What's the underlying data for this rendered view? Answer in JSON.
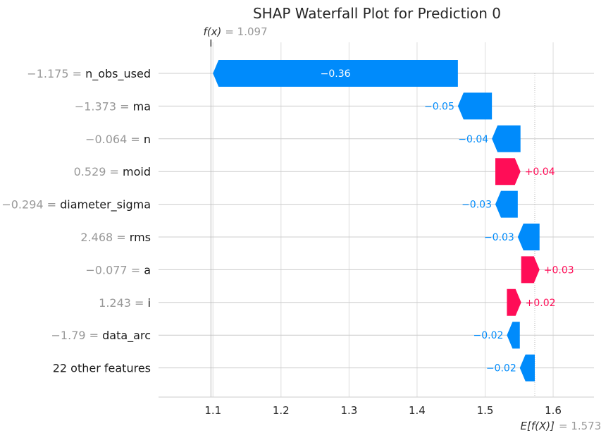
{
  "chart_data": {
    "type": "waterfall",
    "title": "SHAP Waterfall Plot for Prediction 0",
    "fx_label": "f(x)",
    "fx_value": "= 1.097",
    "efx_label": "E[f(X)]",
    "efx_value": "= 1.573",
    "base_value": 1.573,
    "final_value": 1.097,
    "xlim": [
      1.02,
      1.66
    ],
    "xticks": [
      1.1,
      1.2,
      1.3,
      1.4,
      1.5,
      1.6
    ],
    "xtick_labels": [
      "1.1",
      "1.2",
      "1.3",
      "1.4",
      "1.5",
      "1.6"
    ],
    "grid": true,
    "colors": {
      "positive": "#ff0d57",
      "negative": "#008bfb"
    },
    "features": [
      {
        "value": "−1.175 =",
        "name": "n_obs_used",
        "shap": -0.36,
        "label": "−0.36",
        "start": 1.46,
        "end": 1.1
      },
      {
        "value": "−1.373 =",
        "name": "ma",
        "shap": -0.05,
        "label": "−0.05",
        "start": 1.51,
        "end": 1.46
      },
      {
        "value": "−0.064 =",
        "name": "n",
        "shap": -0.04,
        "label": "−0.04",
        "start": 1.552,
        "end": 1.51
      },
      {
        "value": "0.529 =",
        "name": "moid",
        "shap": 0.04,
        "label": "+0.04",
        "start": 1.515,
        "end": 1.552
      },
      {
        "value": "−0.294 =",
        "name": "diameter_sigma",
        "shap": -0.03,
        "label": "−0.03",
        "start": 1.548,
        "end": 1.515
      },
      {
        "value": "2.468 =",
        "name": "rms",
        "shap": -0.03,
        "label": "−0.03",
        "start": 1.58,
        "end": 1.548
      },
      {
        "value": "−0.077 =",
        "name": "a",
        "shap": 0.03,
        "label": "+0.03",
        "start": 1.553,
        "end": 1.58
      },
      {
        "value": "1.243 =",
        "name": "i",
        "shap": 0.02,
        "label": "+0.02",
        "start": 1.532,
        "end": 1.553
      },
      {
        "value": "−1.79 =",
        "name": "data_arc",
        "shap": -0.02,
        "label": "−0.02",
        "start": 1.551,
        "end": 1.532
      },
      {
        "value": "",
        "name": "22 other features",
        "shap": -0.02,
        "label": "−0.02",
        "start": 1.573,
        "end": 1.551
      }
    ]
  }
}
